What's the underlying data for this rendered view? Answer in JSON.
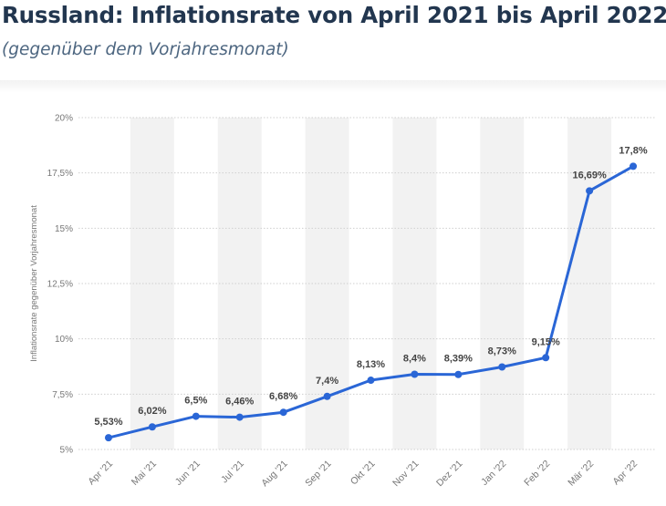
{
  "header": {
    "title": "Russland: Inflationsrate von April 2021 bis April 2022",
    "subtitle": "(gegenüber dem Vorjahresmonat)"
  },
  "chart_data": {
    "type": "line",
    "categories": [
      "Apr '21",
      "Mai '21",
      "Jun '21",
      "Jul '21",
      "Aug '21",
      "Sep '21",
      "Okt '21",
      "Nov '21",
      "Dez '21",
      "Jan '22",
      "Feb '22",
      "Mär '22",
      "Apr '22"
    ],
    "series": [
      {
        "values": [
          5.53,
          6.02,
          6.5,
          6.46,
          6.68,
          7.4,
          8.13,
          8.4,
          8.39,
          8.73,
          9.15,
          16.69,
          17.8
        ],
        "labels": [
          "5,53%",
          "6,02%",
          "6,5%",
          "6,46%",
          "6,68%",
          "7,4%",
          "8,13%",
          "8,4%",
          "8,39%",
          "8,73%",
          "9,15%",
          "16,69%",
          "17,8%"
        ]
      }
    ],
    "ylabel": "Inflationsrate gegenüber Vorjahresmonat",
    "xlabel": "",
    "ylim": [
      5,
      20
    ],
    "yticks": [
      5,
      7.5,
      10,
      12.5,
      15,
      17.5,
      20
    ],
    "ytick_labels": [
      "5%",
      "7,5%",
      "10%",
      "12,5%",
      "15%",
      "17,5%",
      "20%"
    ],
    "grid": true,
    "legend": "none",
    "colors": {
      "line": "#2a66d6",
      "band": "#f2f2f2",
      "grid": "#cfcfcf",
      "tick_text": "#777777",
      "label_text": "#444444"
    }
  }
}
